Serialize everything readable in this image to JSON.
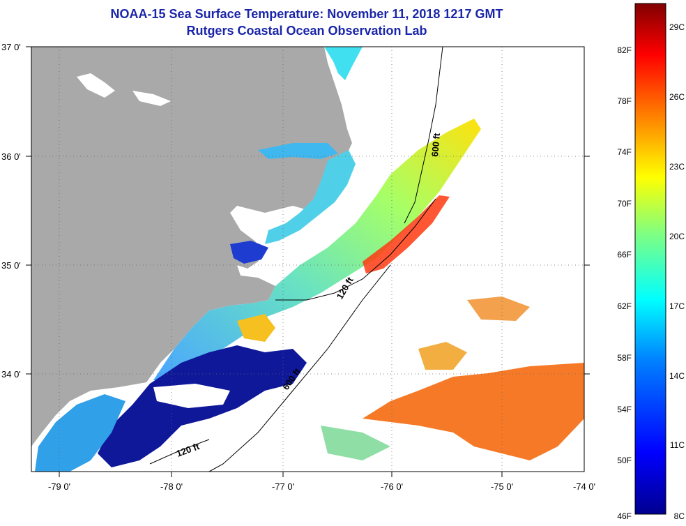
{
  "title": {
    "line1": "NOAA-15 Sea Surface Temperature:  November 11, 2018 1217 GMT",
    "line2": "Rutgers Coastal Ocean Observation Lab"
  },
  "map": {
    "lon_labels": [
      "-79 0'",
      "-78 0'",
      "-77 0'",
      "-76 0'",
      "-75 0'",
      "-74 0'"
    ],
    "lat_labels": [
      "37 0'",
      "36 0'",
      "35 0'",
      "34 0'"
    ],
    "isobath_labels": [
      "600 ft",
      "120 ft",
      "600 ft",
      "120 ft"
    ],
    "colors": {
      "land": "#a9a9a9",
      "nodata": "#ffffff",
      "frame": "#000000"
    }
  },
  "colorbar": {
    "f_labels": [
      "82F",
      "78F",
      "74F",
      "70F",
      "66F",
      "62F",
      "58F",
      "54F",
      "50F",
      "46F"
    ],
    "c_labels": [
      "29C",
      "26C",
      "23C",
      "20C",
      "17C",
      "14C",
      "11C",
      "8C"
    ],
    "stops": [
      "#00008f",
      "#0000ff",
      "#0080ff",
      "#00ffff",
      "#80ff80",
      "#ffff00",
      "#ff8000",
      "#ff0000",
      "#800000"
    ]
  }
}
